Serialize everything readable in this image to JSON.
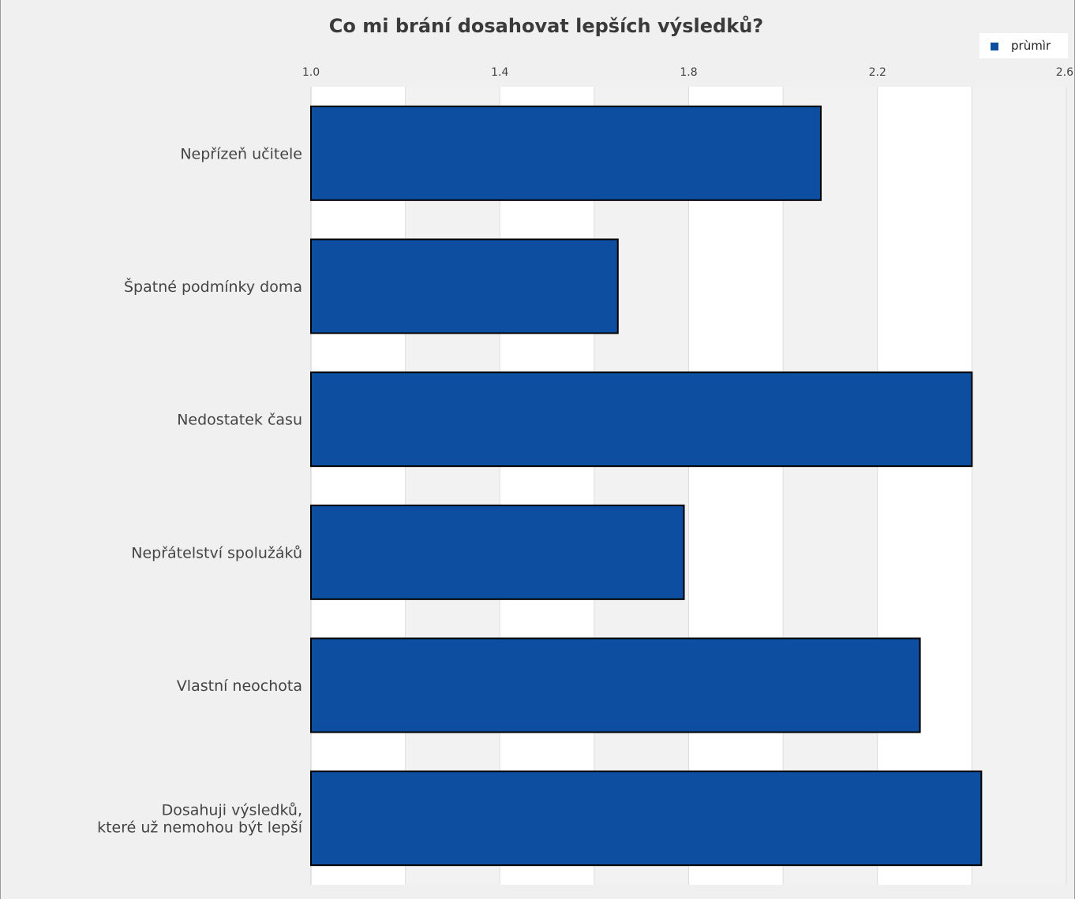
{
  "chart_data": {
    "type": "bar",
    "orientation": "horizontal",
    "title": "Co mi brání dosahovat lepších výsledků?",
    "categories": [
      "Nepřízeň učitele",
      "Špatné podmínky doma",
      "Nedostatek času",
      "Nepřátelství spolužáků",
      "Vlastní neochota",
      "Dosahuji výsledků,\nkteré už nemohou být lepší"
    ],
    "series": [
      {
        "name": "prùmìr",
        "values": [
          2.08,
          1.65,
          2.4,
          1.79,
          2.29,
          2.42
        ]
      }
    ],
    "xlim": [
      1.0,
      2.6
    ],
    "x_ticks": [
      "1.0",
      "1.4",
      "1.8",
      "2.2",
      "2.6"
    ],
    "xlabel": "",
    "ylabel": "",
    "grid": true,
    "legend_position": "top-right",
    "colors": {
      "bar": "#0d4ea1",
      "bar_outline": "#000000",
      "band_light": "#ffffff",
      "band_dark": "#f2f2f2",
      "background": "#f0f0f0"
    }
  }
}
